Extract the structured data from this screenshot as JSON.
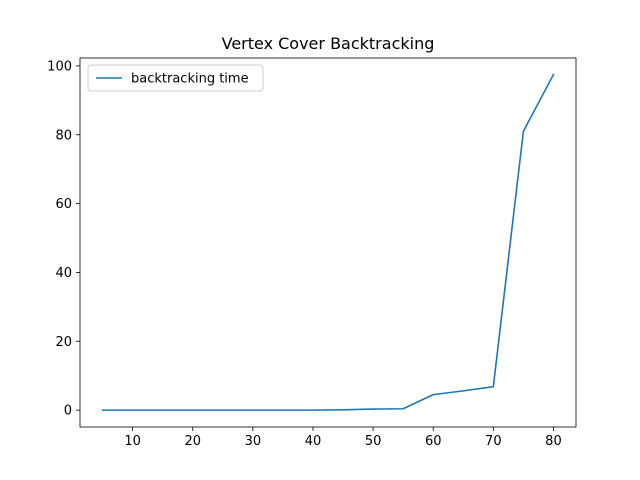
{
  "chart_data": {
    "type": "line",
    "title": "Vertex Cover Backtracking",
    "xlabel": "",
    "ylabel": "",
    "xlim": [
      1.25,
      83.75
    ],
    "ylim": [
      -4.9,
      102.3
    ],
    "xticks": [
      10,
      20,
      30,
      40,
      50,
      60,
      70,
      80
    ],
    "yticks": [
      0,
      20,
      40,
      60,
      80,
      100
    ],
    "grid": false,
    "legend": "top-left",
    "series": [
      {
        "name": "backtracking time",
        "color": "#1f77b4",
        "x": [
          5,
          10,
          15,
          20,
          25,
          30,
          35,
          40,
          45,
          50,
          55,
          60,
          65,
          70,
          75,
          80
        ],
        "y": [
          0,
          0,
          0,
          0,
          0,
          0,
          0,
          0,
          0.1,
          0.3,
          0.4,
          4.5,
          5.6,
          6.8,
          81,
          97.5
        ]
      }
    ]
  }
}
